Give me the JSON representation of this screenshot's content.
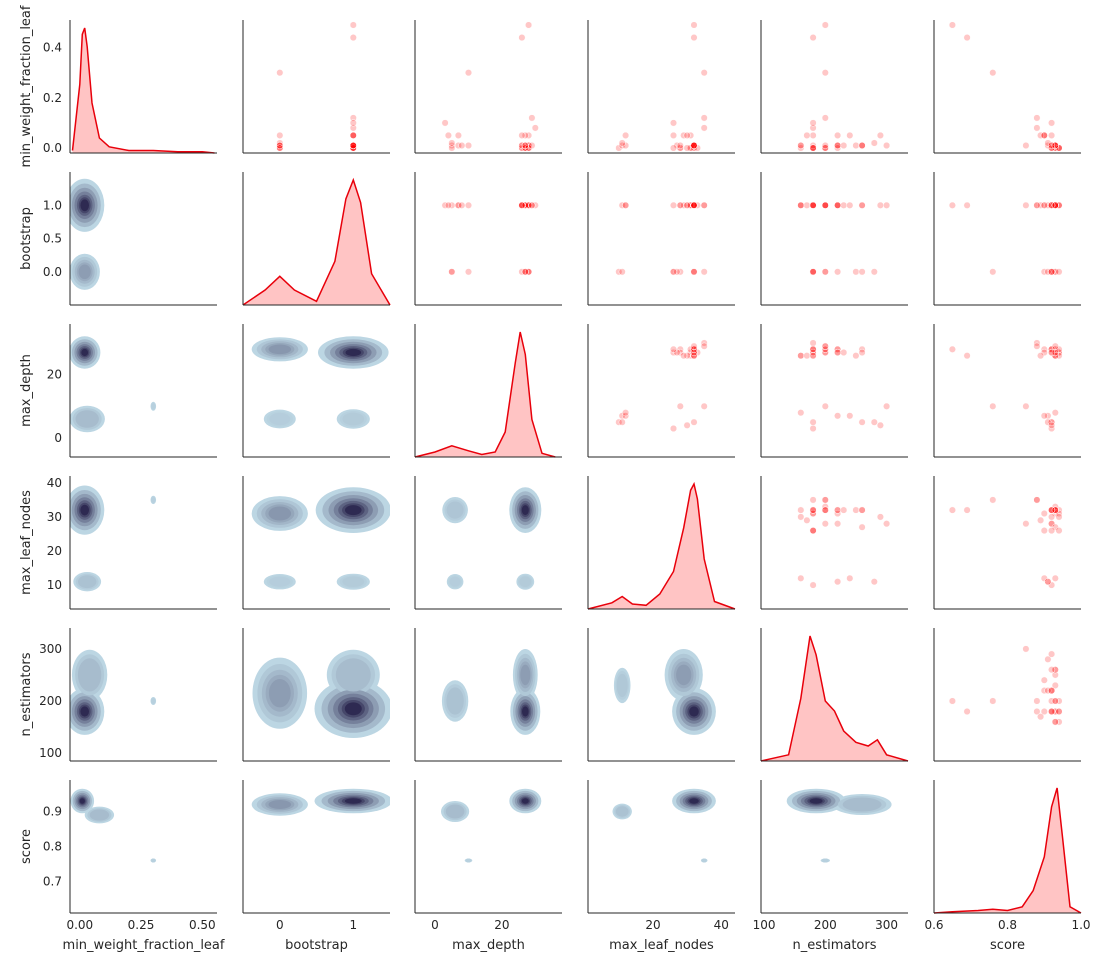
{
  "chart_data": {
    "type": "scatter",
    "kind": "pairplot",
    "variables": [
      "min_weight_fraction_leaf",
      "bootstrap",
      "max_depth",
      "max_leaf_nodes",
      "n_estimators",
      "score"
    ],
    "axis_labels": [
      "min_weight_fraction_leaf",
      "bootstrap",
      "max_depth",
      "max_leaf_nodes",
      "n_estimators",
      "score"
    ],
    "upper_triangle": "scatter",
    "lower_triangle": "kde-contour",
    "diagonal": "kde",
    "colors": {
      "scatter": "#ff0000",
      "diag_line": "#e8000b",
      "diag_fill": "#ffc4c4",
      "contour_light": "#bcd6e3",
      "contour_dark": "#2e2a52"
    },
    "grid": false,
    "legend": "none",
    "axes": {
      "min_weight_fraction_leaf": {
        "lim": [
          -0.04,
          0.56
        ],
        "ticks": [
          0.0,
          0.25,
          0.5
        ],
        "tick_labels": [
          "0.00",
          "0.25",
          "0.50"
        ],
        "row_ticks": [
          0.0,
          0.2,
          0.4
        ],
        "row_tick_labels": [
          "0.0",
          "0.2",
          "0.4"
        ],
        "row_lim": [
          -0.02,
          0.51
        ]
      },
      "bootstrap": {
        "lim": [
          -0.5,
          1.5
        ],
        "ticks": [
          0,
          1
        ],
        "tick_labels": [
          "0",
          "1"
        ],
        "row_ticks": [
          0.0,
          0.5,
          1.0
        ],
        "row_tick_labels": [
          "0.0",
          "0.5",
          "1.0"
        ],
        "row_lim": [
          -0.5,
          1.5
        ]
      },
      "max_depth": {
        "lim": [
          -6,
          38
        ],
        "ticks": [
          0,
          20
        ],
        "tick_labels": [
          "0",
          "20"
        ],
        "row_ticks": [
          0,
          20
        ],
        "row_tick_labels": [
          "0",
          "20"
        ],
        "row_lim": [
          -6,
          36
        ]
      },
      "max_leaf_nodes": {
        "lim": [
          1,
          44
        ],
        "ticks": [
          20,
          40
        ],
        "tick_labels": [
          "20",
          "40"
        ],
        "row_ticks": [
          10,
          20,
          30,
          40
        ],
        "row_tick_labels": [
          "10",
          "20",
          "30",
          "40"
        ],
        "row_lim": [
          3,
          42
        ]
      },
      "n_estimators": {
        "lim": [
          95,
          335
        ],
        "ticks": [
          100,
          200,
          300
        ],
        "tick_labels": [
          "100",
          "200",
          "300"
        ],
        "row_ticks": [
          100,
          200,
          300
        ],
        "row_tick_labels": [
          "100",
          "200",
          "300"
        ],
        "row_lim": [
          85,
          340
        ]
      },
      "score": {
        "lim": [
          0.6,
          1.0
        ],
        "ticks": [
          0.6,
          0.8,
          1.0
        ],
        "tick_labels": [
          "0.6",
          "0.8",
          "1.0"
        ],
        "row_ticks": [
          0.7,
          0.8,
          0.9
        ],
        "row_tick_labels": [
          "0.7",
          "0.8",
          "0.9"
        ],
        "row_lim": [
          0.61,
          0.99
        ]
      }
    },
    "diagonal_density": {
      "min_weight_fraction_leaf": {
        "x": [
          -0.03,
          0.0,
          0.01,
          0.02,
          0.03,
          0.05,
          0.08,
          0.12,
          0.2,
          0.3,
          0.4,
          0.5,
          0.55
        ],
        "density": [
          0.02,
          0.55,
          0.95,
          1.0,
          0.85,
          0.4,
          0.12,
          0.05,
          0.02,
          0.02,
          0.01,
          0.01,
          0.0
        ]
      },
      "bootstrap": {
        "x": [
          -0.5,
          -0.2,
          0.0,
          0.2,
          0.5,
          0.75,
          0.9,
          1.0,
          1.1,
          1.25,
          1.5
        ],
        "density": [
          0.0,
          0.12,
          0.23,
          0.12,
          0.03,
          0.35,
          0.85,
          1.0,
          0.82,
          0.25,
          0.0
        ]
      },
      "max_depth": {
        "x": [
          -6,
          0,
          5,
          10,
          14,
          18,
          21,
          24,
          25.5,
          27,
          29,
          32,
          36
        ],
        "density": [
          0.0,
          0.04,
          0.09,
          0.05,
          0.02,
          0.04,
          0.2,
          0.75,
          1.0,
          0.82,
          0.3,
          0.03,
          0.0
        ]
      },
      "max_leaf_nodes": {
        "x": [
          1,
          8,
          11,
          14,
          18,
          22,
          26,
          29,
          31,
          32,
          33,
          35,
          38,
          44
        ],
        "density": [
          0.0,
          0.05,
          0.1,
          0.04,
          0.03,
          0.12,
          0.3,
          0.65,
          0.95,
          1.0,
          0.88,
          0.4,
          0.06,
          0.0
        ]
      },
      "n_estimators": {
        "x": [
          95,
          140,
          160,
          175,
          185,
          200,
          215,
          230,
          250,
          270,
          285,
          300,
          335
        ],
        "density": [
          0.0,
          0.05,
          0.5,
          1.0,
          0.85,
          0.48,
          0.4,
          0.24,
          0.15,
          0.12,
          0.17,
          0.05,
          0.0
        ]
      },
      "score": {
        "x": [
          0.6,
          0.65,
          0.72,
          0.76,
          0.8,
          0.84,
          0.87,
          0.9,
          0.92,
          0.935,
          0.95,
          0.97,
          1.0
        ],
        "density": [
          0.0,
          0.01,
          0.02,
          0.03,
          0.02,
          0.05,
          0.18,
          0.45,
          0.85,
          1.0,
          0.6,
          0.05,
          0.0
        ]
      }
    },
    "points": {
      "min_weight_fraction_leaf": [
        0.0,
        0.0,
        0.0,
        0.01,
        0.01,
        0.0,
        0.01,
        0.0,
        0.01,
        0.0,
        0.01,
        0.0,
        0.05,
        0.05,
        0.01,
        0.0,
        0.08,
        0.05,
        0.01,
        0.12,
        0.1,
        0.01,
        0.3,
        0.44,
        0.49,
        0.0,
        0.01,
        0.05,
        0.01,
        0.02,
        0.05,
        0.01,
        0.0,
        0.01,
        0.01
      ],
      "bootstrap": [
        1,
        1,
        1,
        1,
        0,
        1,
        1,
        0,
        1,
        1,
        0,
        1,
        1,
        0,
        1,
        1,
        1,
        1,
        0,
        1,
        1,
        1,
        0,
        1,
        1,
        0,
        1,
        1,
        1,
        0,
        1,
        1,
        0,
        1,
        0
      ],
      "max_depth": [
        28,
        27,
        26,
        28,
        26,
        27,
        27,
        28,
        28,
        26,
        28,
        27,
        28,
        27,
        26,
        27,
        30,
        26,
        27,
        29,
        3,
        5,
        10,
        26,
        28,
        5,
        7,
        7,
        8,
        5,
        4,
        10,
        28,
        29,
        27
      ],
      "max_leaf_nodes": [
        32,
        32,
        31,
        32,
        32,
        31,
        32,
        28,
        32,
        30,
        32,
        33,
        31,
        26,
        32,
        28,
        35,
        29,
        27,
        35,
        26,
        32,
        35,
        32,
        32,
        10,
        11,
        12,
        12,
        11,
        30,
        28,
        26,
        32,
        32
      ],
      "n_estimators": [
        180,
        200,
        180,
        220,
        250,
        180,
        230,
        200,
        260,
        160,
        180,
        200,
        220,
        180,
        160,
        220,
        180,
        170,
        260,
        200,
        180,
        260,
        200,
        180,
        200,
        180,
        220,
        240,
        160,
        280,
        290,
        300,
        180,
        200,
        220
      ],
      "score": [
        0.93,
        0.94,
        0.93,
        0.92,
        0.93,
        0.94,
        0.93,
        0.92,
        0.93,
        0.94,
        0.92,
        0.93,
        0.9,
        0.9,
        0.93,
        0.92,
        0.88,
        0.89,
        0.93,
        0.88,
        0.92,
        0.92,
        0.76,
        0.69,
        0.65,
        0.92,
        0.91,
        0.9,
        0.93,
        0.91,
        0.92,
        0.85,
        0.94,
        0.93,
        0.92
      ]
    },
    "density_blobs": [
      [],
      [
        [
          [
            0.02,
            1.0,
            0.05,
            0.25,
            1.0
          ],
          [
            0.02,
            0.0,
            0.05,
            0.22,
            0.5
          ]
        ]
      ],
      [
        [
          [
            0.02,
            27,
            0.04,
            3.2,
            1.0
          ],
          [
            0.03,
            6,
            0.06,
            3.5,
            0.45
          ],
          [
            0.3,
            10,
            0.012,
            1.5,
            0.1
          ]
        ],
        [
          [
            0,
            28,
            0.3,
            3.0,
            0.55
          ],
          [
            1,
            27,
            0.3,
            3.2,
            1.0
          ],
          [
            0,
            6,
            0.22,
            3.0,
            0.15
          ],
          [
            1,
            6,
            0.22,
            3.0,
            0.2
          ]
        ]
      ],
      [
        [
          [
            0.02,
            32,
            0.05,
            4.5,
            1.0
          ],
          [
            0.03,
            11,
            0.05,
            2.5,
            0.35
          ],
          [
            0.3,
            35,
            0.012,
            1.3,
            0.1
          ]
        ],
        [
          [
            0,
            31,
            0.3,
            4.0,
            0.55
          ],
          [
            1,
            32,
            0.32,
            4.2,
            1.0
          ],
          [
            0,
            11,
            0.22,
            2.3,
            0.15
          ],
          [
            1,
            11,
            0.22,
            2.3,
            0.2
          ]
        ],
        [
          [
            27,
            32,
            3.0,
            4.2,
            1.0
          ],
          [
            6,
            32,
            3.5,
            3.5,
            0.3
          ],
          [
            6,
            11,
            2.5,
            2.3,
            0.15
          ],
          [
            27,
            11,
            2.6,
            2.3,
            0.2
          ]
        ]
      ],
      [
        [
          [
            0.02,
            180,
            0.05,
            28,
            1.0
          ],
          [
            0.04,
            250,
            0.06,
            40,
            0.45
          ],
          [
            0.3,
            200,
            0.012,
            8,
            0.1
          ]
        ],
        [
          [
            0,
            215,
            0.3,
            55,
            0.5
          ],
          [
            1,
            185,
            0.33,
            35,
            1.0
          ],
          [
            1,
            250,
            0.3,
            40,
            0.45
          ]
        ],
        [
          [
            27,
            180,
            2.8,
            28,
            1.0
          ],
          [
            27,
            250,
            3.0,
            40,
            0.5
          ],
          [
            6,
            200,
            3.5,
            35,
            0.35
          ]
        ],
        [
          [
            32,
            180,
            4.0,
            28,
            1.0
          ],
          [
            29,
            250,
            4.5,
            40,
            0.5
          ],
          [
            11,
            230,
            2.3,
            32,
            0.25
          ]
        ]
      ],
      [
        [
          [
            0.01,
            0.93,
            0.03,
            0.022,
            1.0
          ],
          [
            0.08,
            0.89,
            0.05,
            0.02,
            0.45
          ],
          [
            0.3,
            0.76,
            0.012,
            0.006,
            0.1
          ]
        ],
        [
          [
            0,
            0.92,
            0.3,
            0.025,
            0.55
          ],
          [
            1,
            0.93,
            0.33,
            0.022,
            1.0
          ]
        ],
        [
          [
            27,
            0.93,
            3.0,
            0.022,
            1.0
          ],
          [
            6,
            0.9,
            3.5,
            0.025,
            0.45
          ],
          [
            10,
            0.76,
            1.2,
            0.006,
            0.1
          ]
        ],
        [
          [
            32,
            0.93,
            4.0,
            0.022,
            1.0
          ],
          [
            11,
            0.9,
            2.5,
            0.02,
            0.35
          ],
          [
            35,
            0.76,
            1.0,
            0.006,
            0.1
          ]
        ],
        [
          [
            185,
            0.93,
            30,
            0.022,
            1.0
          ],
          [
            260,
            0.92,
            40,
            0.025,
            0.45
          ],
          [
            200,
            0.76,
            8,
            0.006,
            0.1
          ]
        ]
      ]
    ]
  }
}
